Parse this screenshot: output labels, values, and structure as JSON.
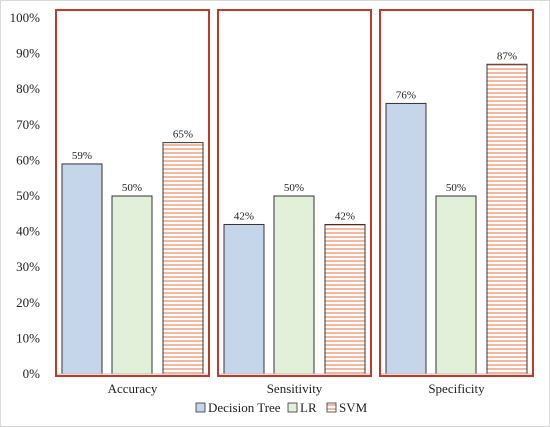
{
  "chart_data": {
    "type": "bar",
    "categories": [
      "Accuracy",
      "Sensitivity",
      "Specificity"
    ],
    "series": [
      {
        "name": "Decision Tree",
        "values": [
          59,
          42,
          76
        ],
        "color": "#c5d5ea",
        "pattern": "solid"
      },
      {
        "name": "LR",
        "values": [
          50,
          50,
          50
        ],
        "color": "#e2efd9",
        "pattern": "solid"
      },
      {
        "name": "SVM",
        "values": [
          65,
          42,
          87
        ],
        "color": "#f8cbad",
        "pattern": "horizontal-stripes"
      }
    ],
    "data_labels": [
      [
        "59%",
        "42%",
        "76%"
      ],
      [
        "50%",
        "50%",
        "50%"
      ],
      [
        "65%",
        "42%",
        "87%"
      ]
    ],
    "y_ticks": [
      "0%",
      "10%",
      "20%",
      "30%",
      "40%",
      "50%",
      "60%",
      "70%",
      "80%",
      "90%",
      "100%"
    ],
    "ylim": [
      0,
      100
    ],
    "legend_position": "bottom",
    "group_box_color": "#c0392b",
    "grid": false
  }
}
